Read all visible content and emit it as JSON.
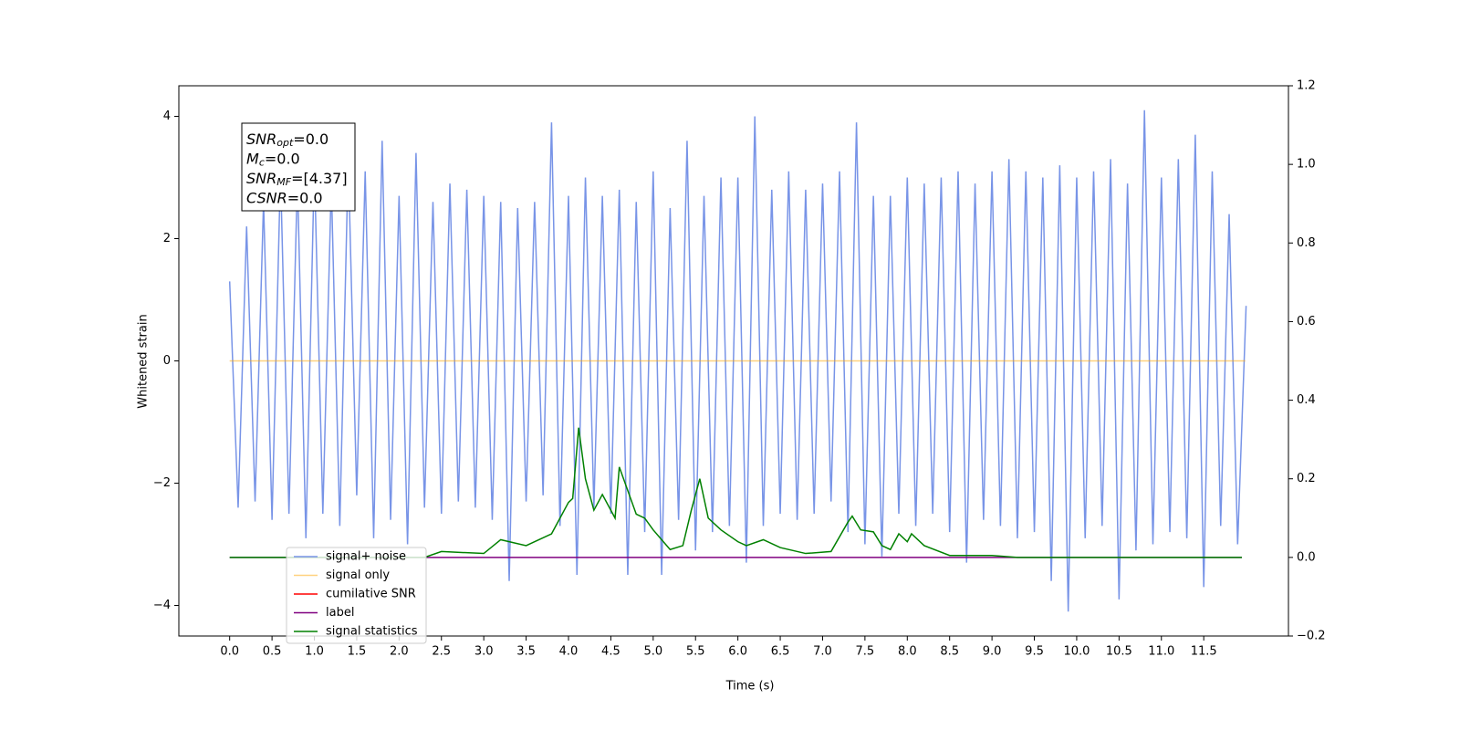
{
  "chart_data": {
    "type": "line",
    "xlabel": "Time (s)",
    "ylabel": "Whitened strain",
    "xlim": [
      -0.6,
      12.5
    ],
    "ylim": [
      -4.5,
      4.5
    ],
    "y2lim": [
      -0.2,
      1.2
    ],
    "xticks": [
      {
        "value": 0,
        "label": "0.0"
      },
      0.5,
      {
        "value": 1,
        "label": "1.0"
      },
      1.5,
      {
        "value": 2,
        "label": "2.0"
      },
      2.5,
      {
        "value": 3,
        "label": "3.0"
      },
      3.5,
      {
        "value": 4,
        "label": "4.0"
      },
      4.5,
      {
        "value": 5,
        "label": "5.0"
      },
      5.5,
      {
        "value": 6,
        "label": "6.0"
      },
      6.5,
      {
        "value": 7,
        "label": "7.0"
      },
      7.5,
      {
        "value": 8,
        "label": "8.0"
      },
      8.5,
      {
        "value": 9,
        "label": "9.0"
      },
      9.5,
      {
        "value": 10,
        "label": "10.0"
      },
      10.5,
      {
        "value": 11,
        "label": "11.0"
      },
      11.5
    ],
    "yticks": [
      {
        "value": -4,
        "label": "−4"
      },
      {
        "value": -2,
        "label": "−2"
      },
      0,
      2,
      4
    ],
    "y2ticks": [
      {
        "value": -0.2,
        "label": "−0.2"
      },
      {
        "value": 0,
        "label": "0.0"
      },
      0.2,
      0.4,
      0.6,
      0.8,
      {
        "value": 1,
        "label": "1.0"
      },
      1.2
    ],
    "legend": "lower left",
    "annotation": [
      {
        "name": "SNR",
        "sub": "opt",
        "text": "=0.0"
      },
      {
        "name": "M",
        "sub": "c",
        "text": "=0.0"
      },
      {
        "name": "SNR",
        "sub": "MF",
        "text": "=[4.37]"
      },
      {
        "name": "CSNR",
        "text": "=0.0"
      }
    ],
    "series": [
      {
        "name": "signal+ noise",
        "color": "#7894e7",
        "x": [
          0,
          0.1,
          0.2,
          0.3,
          0.4,
          0.5,
          0.6,
          0.7,
          0.8,
          0.9,
          1.0,
          1.1,
          1.2,
          1.3,
          1.4,
          1.5,
          1.6,
          1.7,
          1.8,
          1.9,
          2.0,
          2.1,
          2.2,
          2.3,
          2.4,
          2.5,
          2.6,
          2.7,
          2.8,
          2.9,
          3.0,
          3.1,
          3.2,
          3.3,
          3.4,
          3.5,
          3.6,
          3.7,
          3.8,
          3.9,
          4.0,
          4.1,
          4.2,
          4.3,
          4.4,
          4.5,
          4.6,
          4.7,
          4.8,
          4.9,
          5.0,
          5.1,
          5.2,
          5.3,
          5.4,
          5.5,
          5.6,
          5.7,
          5.8,
          5.9,
          6.0,
          6.1,
          6.2,
          6.3,
          6.4,
          6.5,
          6.6,
          6.7,
          6.8,
          6.9,
          7.0,
          7.1,
          7.2,
          7.3,
          7.4,
          7.5,
          7.6,
          7.7,
          7.8,
          7.9,
          8.0,
          8.1,
          8.2,
          8.3,
          8.4,
          8.5,
          8.6,
          8.7,
          8.8,
          8.9,
          9.0,
          9.1,
          9.2,
          9.3,
          9.4,
          9.5,
          9.6,
          9.7,
          9.8,
          9.9,
          10.0,
          10.1,
          10.2,
          10.3,
          10.4,
          10.5,
          10.6,
          10.7,
          10.8,
          10.9,
          11.0,
          11.1,
          11.2,
          11.3,
          11.4,
          11.5,
          11.6,
          11.7,
          11.8,
          11.9,
          12.0
        ],
        "values": [
          1.3,
          -2.4,
          2.2,
          -2.3,
          2.6,
          -2.6,
          3.1,
          -2.5,
          3.0,
          -2.9,
          3.2,
          -2.5,
          2.9,
          -2.7,
          3.3,
          -2.2,
          3.1,
          -2.9,
          3.6,
          -2.6,
          2.7,
          -3.0,
          3.4,
          -2.4,
          2.6,
          -2.5,
          2.9,
          -2.3,
          2.8,
          -2.4,
          2.7,
          -2.6,
          2.6,
          -3.6,
          2.5,
          -2.3,
          2.6,
          -2.2,
          3.9,
          -2.7,
          2.7,
          -3.5,
          3.0,
          -2.4,
          2.7,
          -2.5,
          2.8,
          -3.5,
          2.6,
          -2.8,
          3.1,
          -3.5,
          2.5,
          -2.6,
          3.6,
          -3.1,
          2.7,
          -2.8,
          3.0,
          -2.7,
          3.0,
          -3.3,
          4.0,
          -2.7,
          2.8,
          -2.5,
          3.1,
          -2.6,
          2.8,
          -2.5,
          2.9,
          -2.3,
          3.1,
          -2.8,
          3.9,
          -3.0,
          2.7,
          -3.2,
          2.7,
          -2.5,
          3.0,
          -2.7,
          2.9,
          -2.5,
          3.0,
          -2.8,
          3.1,
          -3.3,
          2.9,
          -2.6,
          3.1,
          -2.7,
          3.3,
          -2.9,
          3.1,
          -2.8,
          3.0,
          -3.6,
          3.2,
          -4.1,
          3.0,
          -2.9,
          3.1,
          -2.7,
          3.3,
          -3.9,
          2.9,
          -3.1,
          4.1,
          -3.0,
          3.0,
          -2.8,
          3.3,
          -2.9,
          3.7,
          -3.7,
          3.1,
          -2.7,
          2.4,
          -3.0,
          0.9
        ]
      },
      {
        "name": "signal only",
        "color": "#ffa500",
        "alpha": 0.5,
        "x": [
          0,
          11.99
        ],
        "values": [
          0,
          0
        ]
      },
      {
        "name": "cumilative SNR",
        "color": "#ff0000"
      },
      {
        "name": "label",
        "color": "#800080",
        "axis": "y2",
        "x": [
          0,
          11.95
        ],
        "values": [
          0,
          0
        ]
      },
      {
        "name": "signal statistics",
        "color": "#008000",
        "axis": "y2",
        "x": [
          0,
          2.3,
          2.5,
          3.0,
          3.2,
          3.5,
          3.8,
          4.0,
          4.05,
          4.12,
          4.2,
          4.3,
          4.4,
          4.55,
          4.6,
          4.8,
          4.9,
          5.0,
          5.2,
          5.35,
          5.45,
          5.55,
          5.65,
          5.8,
          6.0,
          6.1,
          6.3,
          6.5,
          6.8,
          7.1,
          7.3,
          7.35,
          7.45,
          7.6,
          7.7,
          7.8,
          7.9,
          8.0,
          8.05,
          8.2,
          8.5,
          9.0,
          9.3,
          11.95
        ],
        "values": [
          0,
          0,
          0.015,
          0.01,
          0.045,
          0.03,
          0.06,
          0.14,
          0.15,
          0.33,
          0.2,
          0.12,
          0.16,
          0.1,
          0.23,
          0.11,
          0.1,
          0.07,
          0.02,
          0.03,
          0.12,
          0.2,
          0.1,
          0.07,
          0.04,
          0.03,
          0.045,
          0.025,
          0.01,
          0.015,
          0.09,
          0.105,
          0.07,
          0.065,
          0.03,
          0.02,
          0.06,
          0.04,
          0.06,
          0.03,
          0.005,
          0.005,
          0,
          0
        ]
      }
    ]
  }
}
